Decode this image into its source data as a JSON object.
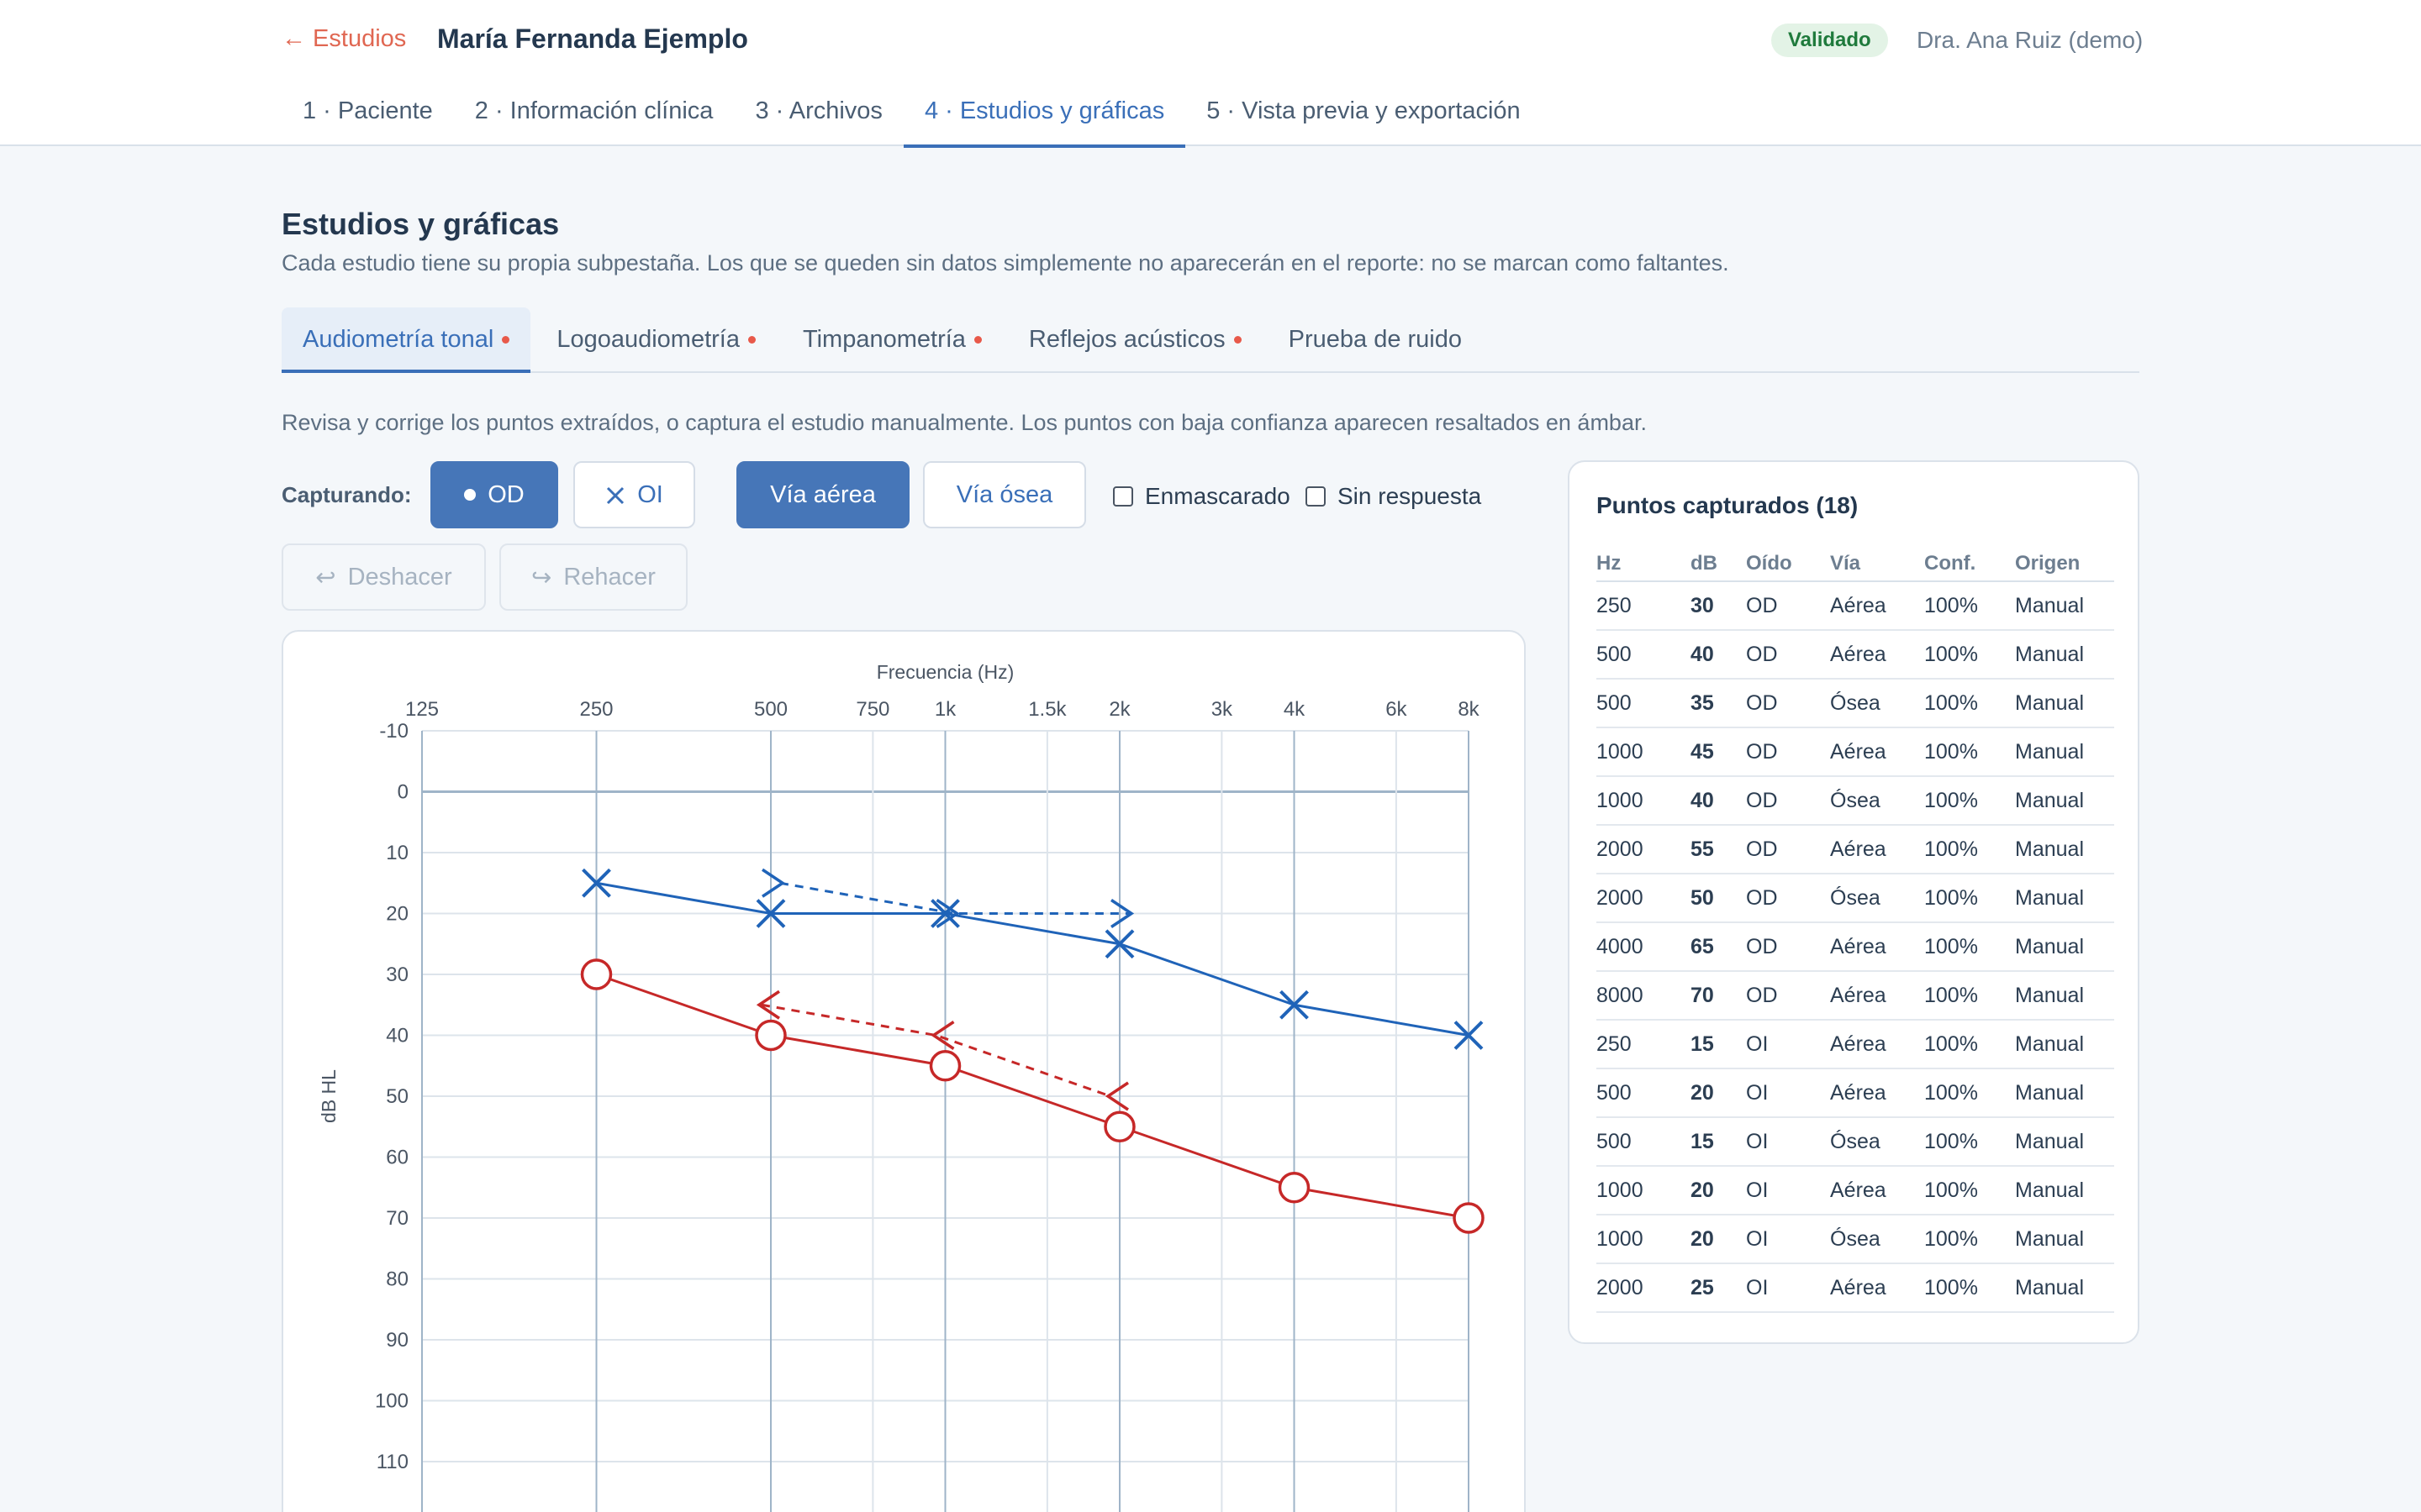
{
  "header": {
    "back_label": "← Estudios",
    "patient_name": "María Fernanda Ejemplo",
    "status": "Validado",
    "user": "Dra. Ana Ruiz (demo)"
  },
  "steps": [
    {
      "label": "1 · Paciente"
    },
    {
      "label": "2 · Información clínica"
    },
    {
      "label": "3 · Archivos"
    },
    {
      "label": "4 · Estudios y gráficas"
    },
    {
      "label": "5 · Vista previa y exportación"
    }
  ],
  "section": {
    "title": "Estudios y gráficas",
    "description": "Cada estudio tiene su propia subpestaña. Los que se queden sin datos simplemente no aparecerán en el reporte: no se marcan como faltantes."
  },
  "subtabs": [
    {
      "label": "Audiometría tonal",
      "dot": true
    },
    {
      "label": "Logoaudiometría",
      "dot": true
    },
    {
      "label": "Timpanometría",
      "dot": true
    },
    {
      "label": "Reflejos acústicos",
      "dot": true
    },
    {
      "label": "Prueba de ruido",
      "dot": false
    }
  ],
  "hint": "Revisa y corrige los puntos extraídos, o captura el estudio manualmente. Los puntos con baja confianza aparecen resaltados en ámbar.",
  "controls": {
    "capturing_label": "Capturando:",
    "od_label": "OD",
    "oi_label": "OI",
    "air_label": "Vía aérea",
    "bone_label": "Vía ósea",
    "masking_label": "Enmascarado",
    "no_response_label": "Sin respuesta",
    "undo_label": "Deshacer",
    "redo_label": "Rehacer"
  },
  "colors": {
    "od": "#c62828",
    "oi": "#1f63b8",
    "accent": "#4676b8"
  },
  "chart_data": {
    "type": "line",
    "xlabel": "Frecuencia (Hz)",
    "ylabel": "dB HL",
    "x_scale": "log",
    "y_inverted": true,
    "ylim": [
      -10,
      120
    ],
    "x_ticks": [
      {
        "hz": 125,
        "label": "125"
      },
      {
        "hz": 250,
        "label": "250"
      },
      {
        "hz": 500,
        "label": "500"
      },
      {
        "hz": 750,
        "label": "750"
      },
      {
        "hz": 1000,
        "label": "1k"
      },
      {
        "hz": 1500,
        "label": "1.5k"
      },
      {
        "hz": 2000,
        "label": "2k"
      },
      {
        "hz": 3000,
        "label": "3k"
      },
      {
        "hz": 4000,
        "label": "4k"
      },
      {
        "hz": 6000,
        "label": "6k"
      },
      {
        "hz": 8000,
        "label": "8k"
      }
    ],
    "y_ticks": [
      -10,
      0,
      10,
      20,
      30,
      40,
      50,
      60,
      70,
      80,
      90,
      100,
      110
    ],
    "series": [
      {
        "ear": "OD",
        "route": "air",
        "symbol": "circle",
        "line": "solid",
        "x": [
          250,
          500,
          1000,
          2000,
          4000,
          8000
        ],
        "y": [
          30,
          40,
          45,
          55,
          65,
          70
        ]
      },
      {
        "ear": "OD",
        "route": "bone",
        "symbol": "bracket-left",
        "line": "dashed",
        "x": [
          500,
          1000,
          2000
        ],
        "y": [
          35,
          40,
          50
        ]
      },
      {
        "ear": "OI",
        "route": "air",
        "symbol": "x",
        "line": "solid",
        "x": [
          250,
          500,
          1000,
          2000,
          4000,
          8000
        ],
        "y": [
          15,
          20,
          20,
          25,
          35,
          40
        ]
      },
      {
        "ear": "OI",
        "route": "bone",
        "symbol": "bracket-right",
        "line": "dashed",
        "x": [
          500,
          1000,
          2000
        ],
        "y": [
          15,
          20,
          20
        ]
      }
    ]
  },
  "points": {
    "title": "Puntos capturados (18)",
    "columns": [
      "Hz",
      "dB",
      "Oído",
      "Vía",
      "Conf.",
      "Origen"
    ],
    "rows": [
      {
        "hz": "250",
        "db": "30",
        "ear": "OD",
        "via": "Aérea",
        "conf": "100%",
        "origin": "Manual"
      },
      {
        "hz": "500",
        "db": "40",
        "ear": "OD",
        "via": "Aérea",
        "conf": "100%",
        "origin": "Manual"
      },
      {
        "hz": "500",
        "db": "35",
        "ear": "OD",
        "via": "Ósea",
        "conf": "100%",
        "origin": "Manual"
      },
      {
        "hz": "1000",
        "db": "45",
        "ear": "OD",
        "via": "Aérea",
        "conf": "100%",
        "origin": "Manual"
      },
      {
        "hz": "1000",
        "db": "40",
        "ear": "OD",
        "via": "Ósea",
        "conf": "100%",
        "origin": "Manual"
      },
      {
        "hz": "2000",
        "db": "55",
        "ear": "OD",
        "via": "Aérea",
        "conf": "100%",
        "origin": "Manual"
      },
      {
        "hz": "2000",
        "db": "50",
        "ear": "OD",
        "via": "Ósea",
        "conf": "100%",
        "origin": "Manual"
      },
      {
        "hz": "4000",
        "db": "65",
        "ear": "OD",
        "via": "Aérea",
        "conf": "100%",
        "origin": "Manual"
      },
      {
        "hz": "8000",
        "db": "70",
        "ear": "OD",
        "via": "Aérea",
        "conf": "100%",
        "origin": "Manual"
      },
      {
        "hz": "250",
        "db": "15",
        "ear": "OI",
        "via": "Aérea",
        "conf": "100%",
        "origin": "Manual"
      },
      {
        "hz": "500",
        "db": "20",
        "ear": "OI",
        "via": "Aérea",
        "conf": "100%",
        "origin": "Manual"
      },
      {
        "hz": "500",
        "db": "15",
        "ear": "OI",
        "via": "Ósea",
        "conf": "100%",
        "origin": "Manual"
      },
      {
        "hz": "1000",
        "db": "20",
        "ear": "OI",
        "via": "Aérea",
        "conf": "100%",
        "origin": "Manual"
      },
      {
        "hz": "1000",
        "db": "20",
        "ear": "OI",
        "via": "Ósea",
        "conf": "100%",
        "origin": "Manual"
      },
      {
        "hz": "2000",
        "db": "25",
        "ear": "OI",
        "via": "Aérea",
        "conf": "100%",
        "origin": "Manual"
      }
    ]
  }
}
